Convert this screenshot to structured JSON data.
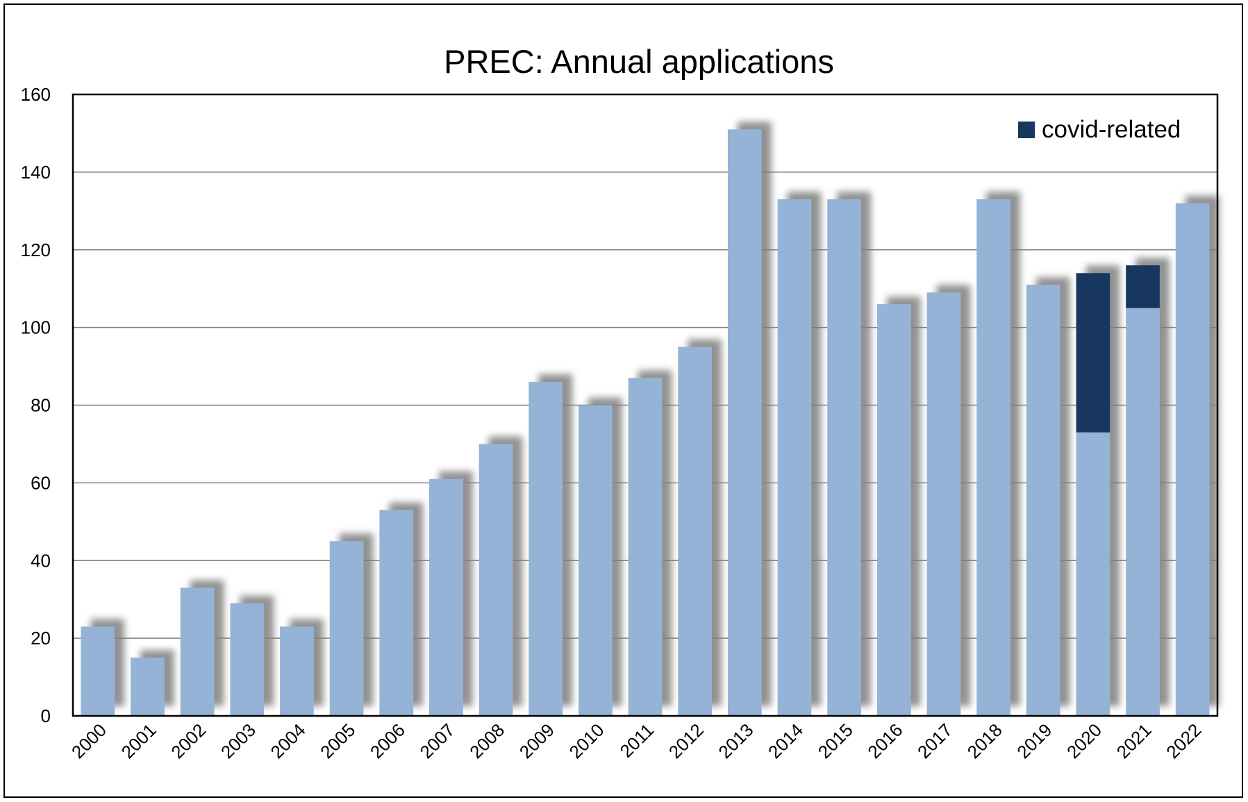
{
  "chart_data": {
    "type": "bar",
    "title": "PREC: Annual applications",
    "xlabel": "",
    "ylabel": "",
    "ylim": [
      0,
      160
    ],
    "yticks": [
      0,
      20,
      40,
      60,
      80,
      100,
      120,
      140,
      160
    ],
    "grid": true,
    "stacked": true,
    "legend_position": "top-right",
    "categories": [
      "2000",
      "2001",
      "2002",
      "2003",
      "2004",
      "2005",
      "2006",
      "2007",
      "2008",
      "2009",
      "2010",
      "2011",
      "2012",
      "2013",
      "2014",
      "2015",
      "2016",
      "2017",
      "2018",
      "2019",
      "2020",
      "2021",
      "2022"
    ],
    "series": [
      {
        "values": [
          23,
          15,
          33,
          29,
          23,
          45,
          53,
          61,
          70,
          86,
          80,
          87,
          95,
          151,
          133,
          133,
          106,
          109,
          133,
          111,
          73,
          105,
          132
        ],
        "color": "#95B3D7"
      },
      {
        "name": "covid-related",
        "values": [
          0,
          0,
          0,
          0,
          0,
          0,
          0,
          0,
          0,
          0,
          0,
          0,
          0,
          0,
          0,
          0,
          0,
          0,
          0,
          0,
          41,
          11,
          0
        ],
        "color": "#17375E"
      }
    ],
    "colors": {
      "grid": "#808080",
      "axis": "#000000",
      "shadow": "#7F7F7F",
      "legend_text": "#595959"
    }
  }
}
